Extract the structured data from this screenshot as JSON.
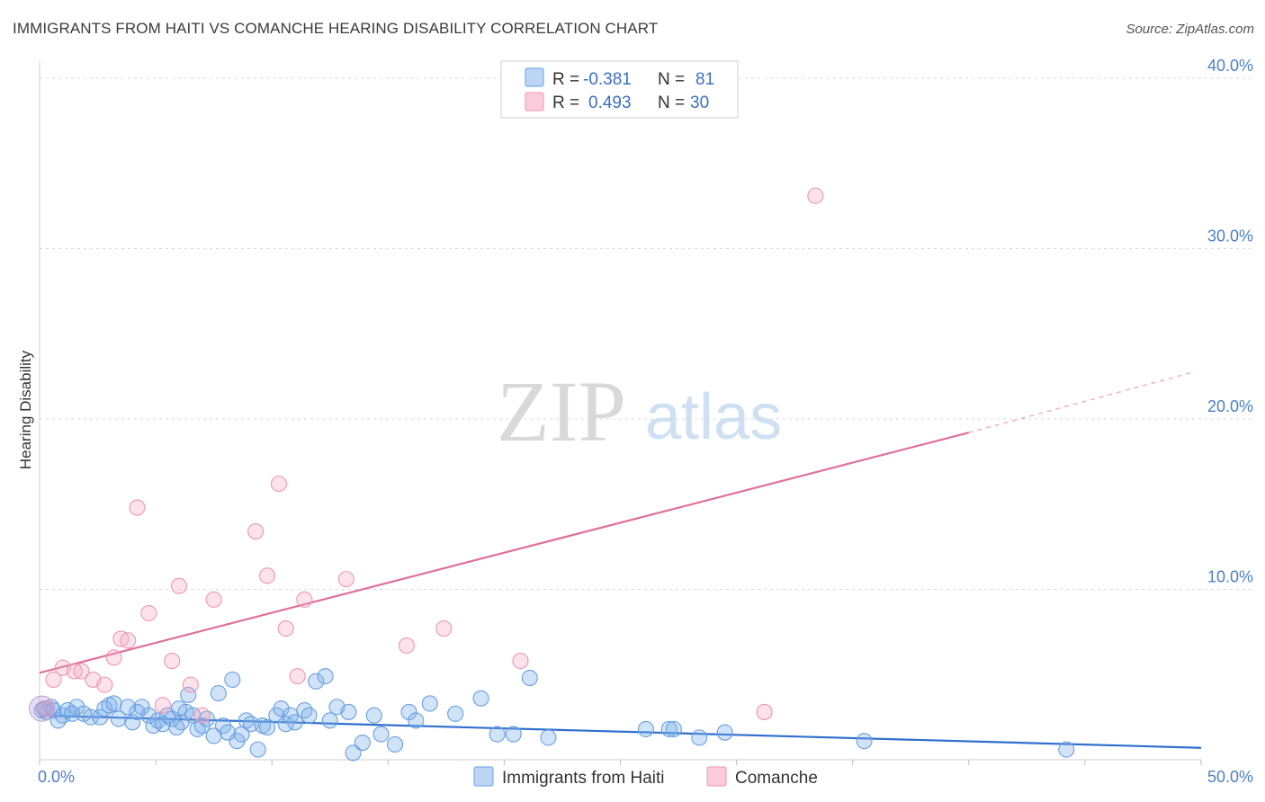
{
  "title": "IMMIGRANTS FROM HAITI VS COMANCHE HEARING DISABILITY CORRELATION CHART",
  "source": "Source: ZipAtlas.com",
  "watermark": {
    "zip": "ZIP",
    "atlas": "atlas"
  },
  "colors": {
    "blue": "#7aaee8",
    "blue_line": "#2f6fcd",
    "pink": "#f4a3bd",
    "pink_line": "#e0709a",
    "grid": "#d8d8d8",
    "tick_text": "#4a7fc9"
  },
  "legend": {
    "rows": [
      {
        "r_label": "R =",
        "r_value": "-0.381",
        "n_label": "N =",
        "n_value": "81"
      },
      {
        "r_label": "R =",
        "r_value": "0.493",
        "n_label": "N =",
        "n_value": "30"
      }
    ]
  },
  "chart_data": {
    "type": "scatter",
    "title": "IMMIGRANTS FROM HAITI VS COMANCHE HEARING DISABILITY CORRELATION CHART",
    "xlabel": "",
    "ylabel": "Hearing Disability",
    "xlim": [
      0,
      50
    ],
    "ylim": [
      0,
      41
    ],
    "x_tick_labels": [
      "0.0%",
      "50.0%"
    ],
    "y_ticks": [
      10,
      20,
      30,
      40
    ],
    "y_tick_labels": [
      "10.0%",
      "20.0%",
      "30.0%",
      "40.0%"
    ],
    "grid": true,
    "legend_position": "top-center",
    "series": [
      {
        "name": "Immigrants from Haiti",
        "color": "#7aaee8",
        "trend": {
          "x0": 0,
          "y0": 2.6,
          "x1": 50,
          "y1": 0.7
        },
        "points": [
          [
            0.1,
            2.9
          ],
          [
            0.3,
            2.8
          ],
          [
            0.5,
            3.1
          ],
          [
            0.6,
            2.9
          ],
          [
            0.8,
            2.3
          ],
          [
            1.0,
            2.6
          ],
          [
            1.2,
            2.9
          ],
          [
            1.6,
            3.1
          ],
          [
            1.9,
            2.7
          ],
          [
            2.2,
            2.5
          ],
          [
            2.6,
            2.5
          ],
          [
            2.8,
            3.0
          ],
          [
            3.0,
            3.2
          ],
          [
            3.2,
            3.3
          ],
          [
            3.4,
            2.4
          ],
          [
            3.8,
            3.1
          ],
          [
            4.0,
            2.2
          ],
          [
            4.2,
            2.8
          ],
          [
            4.4,
            3.1
          ],
          [
            4.7,
            2.6
          ],
          [
            4.9,
            2.0
          ],
          [
            5.1,
            2.3
          ],
          [
            5.3,
            2.1
          ],
          [
            5.5,
            2.6
          ],
          [
            5.7,
            2.4
          ],
          [
            6.0,
            3.0
          ],
          [
            6.1,
            2.2
          ],
          [
            6.3,
            2.8
          ],
          [
            6.4,
            3.8
          ],
          [
            6.6,
            2.6
          ],
          [
            6.8,
            1.8
          ],
          [
            7.0,
            2.0
          ],
          [
            7.2,
            2.4
          ],
          [
            7.5,
            1.4
          ],
          [
            7.7,
            3.9
          ],
          [
            7.9,
            2.0
          ],
          [
            8.1,
            1.6
          ],
          [
            8.3,
            4.7
          ],
          [
            8.5,
            1.1
          ],
          [
            8.7,
            1.5
          ],
          [
            8.9,
            2.3
          ],
          [
            9.1,
            2.1
          ],
          [
            9.4,
            0.6
          ],
          [
            9.6,
            2.0
          ],
          [
            9.8,
            1.9
          ],
          [
            10.2,
            2.6
          ],
          [
            10.4,
            3.0
          ],
          [
            10.6,
            2.1
          ],
          [
            10.8,
            2.6
          ],
          [
            11.0,
            2.2
          ],
          [
            11.4,
            2.9
          ],
          [
            11.6,
            2.6
          ],
          [
            11.9,
            4.6
          ],
          [
            12.3,
            4.9
          ],
          [
            12.5,
            2.3
          ],
          [
            12.8,
            3.1
          ],
          [
            13.3,
            2.8
          ],
          [
            13.5,
            0.4
          ],
          [
            13.9,
            1.0
          ],
          [
            14.4,
            2.6
          ],
          [
            14.7,
            1.5
          ],
          [
            15.3,
            0.9
          ],
          [
            15.9,
            2.8
          ],
          [
            16.2,
            2.3
          ],
          [
            16.8,
            3.3
          ],
          [
            17.9,
            2.7
          ],
          [
            19.0,
            3.6
          ],
          [
            19.7,
            1.5
          ],
          [
            20.4,
            1.5
          ],
          [
            21.1,
            4.8
          ],
          [
            21.9,
            1.3
          ],
          [
            26.1,
            1.8
          ],
          [
            27.1,
            1.8
          ],
          [
            27.3,
            1.8
          ],
          [
            28.4,
            1.3
          ],
          [
            29.5,
            1.6
          ],
          [
            35.5,
            1.1
          ],
          [
            44.2,
            0.6
          ],
          [
            0.2,
            3.0
          ],
          [
            1.4,
            2.7
          ],
          [
            5.9,
            1.9
          ]
        ]
      },
      {
        "name": "Comanche",
        "color": "#f4a3bd",
        "trend": {
          "x0": 0,
          "y0": 5.1,
          "x1": 40,
          "y1": 19.2,
          "dash_to_x": 50,
          "dash_to_y": 22.7
        },
        "points": [
          [
            0.6,
            4.7
          ],
          [
            1.0,
            5.4
          ],
          [
            1.5,
            5.2
          ],
          [
            1.8,
            5.2
          ],
          [
            2.3,
            4.7
          ],
          [
            2.8,
            4.4
          ],
          [
            3.2,
            6.0
          ],
          [
            3.5,
            7.1
          ],
          [
            3.8,
            7.0
          ],
          [
            4.2,
            14.8
          ],
          [
            4.7,
            8.6
          ],
          [
            5.3,
            3.2
          ],
          [
            5.7,
            5.8
          ],
          [
            6.0,
            10.2
          ],
          [
            6.5,
            4.4
          ],
          [
            7.0,
            2.6
          ],
          [
            7.5,
            9.4
          ],
          [
            9.3,
            13.4
          ],
          [
            9.8,
            10.8
          ],
          [
            10.3,
            16.2
          ],
          [
            10.6,
            7.7
          ],
          [
            11.1,
            4.9
          ],
          [
            11.4,
            9.4
          ],
          [
            13.2,
            10.6
          ],
          [
            15.8,
            6.7
          ],
          [
            17.4,
            7.7
          ],
          [
            20.7,
            5.8
          ],
          [
            31.2,
            2.8
          ],
          [
            33.4,
            33.1
          ],
          [
            0.3,
            3.0
          ]
        ]
      }
    ]
  },
  "bottom_legend": {
    "items": [
      "Immigrants from Haiti",
      "Comanche"
    ]
  }
}
